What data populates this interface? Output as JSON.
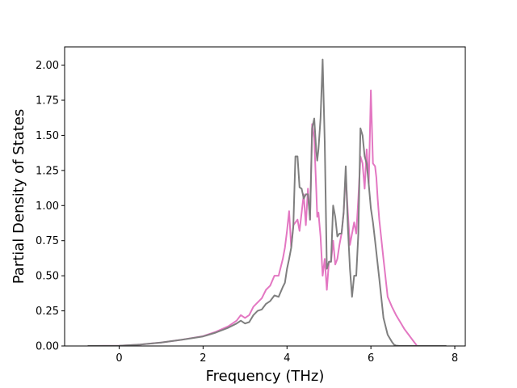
{
  "chart_data": {
    "type": "line",
    "title": "",
    "xlabel": "Frequency (THz)",
    "ylabel": "Partial Density of States",
    "xlim": [
      -1.3,
      8.25
    ],
    "ylim": [
      0.0,
      2.13
    ],
    "xticks": [
      0,
      2,
      4,
      6,
      8
    ],
    "xtick_labels": [
      "0",
      "2",
      "4",
      "6",
      "8"
    ],
    "yticks": [
      0.0,
      0.25,
      0.5,
      0.75,
      1.0,
      1.25,
      1.5,
      1.75,
      2.0
    ],
    "ytick_labels": [
      "0.00",
      "0.25",
      "0.50",
      "0.75",
      "1.00",
      "1.25",
      "1.50",
      "1.75",
      "2.00"
    ],
    "grid": false,
    "legend": "none",
    "series": [
      {
        "color": "#e377c2",
        "x": [
          -0.75,
          0.0,
          0.5,
          1.0,
          1.5,
          2.0,
          2.3,
          2.6,
          2.8,
          2.9,
          3.0,
          3.1,
          3.2,
          3.3,
          3.4,
          3.5,
          3.6,
          3.7,
          3.8,
          3.9,
          3.95,
          4.0,
          4.05,
          4.1,
          4.15,
          4.2,
          4.25,
          4.3,
          4.35,
          4.4,
          4.45,
          4.5,
          4.55,
          4.6,
          4.65,
          4.7,
          4.72,
          4.75,
          4.8,
          4.85,
          4.9,
          4.95,
          5.0,
          5.05,
          5.1,
          5.15,
          5.2,
          5.25,
          5.3,
          5.35,
          5.4,
          5.45,
          5.5,
          5.55,
          5.6,
          5.65,
          5.7,
          5.75,
          5.8,
          5.85,
          5.9,
          5.95,
          6.0,
          6.05,
          6.1,
          6.13,
          6.16,
          6.2,
          6.3,
          6.4,
          6.5,
          6.6,
          6.7,
          6.8,
          6.9,
          7.0,
          7.05,
          7.1
        ],
        "values": [
          0.0,
          0.002,
          0.01,
          0.025,
          0.045,
          0.07,
          0.1,
          0.14,
          0.18,
          0.22,
          0.2,
          0.22,
          0.28,
          0.31,
          0.34,
          0.4,
          0.43,
          0.5,
          0.5,
          0.62,
          0.7,
          0.82,
          0.96,
          0.7,
          0.86,
          0.88,
          0.9,
          0.82,
          0.95,
          1.08,
          0.86,
          1.12,
          0.9,
          1.58,
          1.48,
          1.1,
          0.92,
          0.95,
          0.78,
          0.5,
          0.62,
          0.4,
          0.6,
          0.6,
          0.75,
          0.58,
          0.62,
          0.72,
          0.8,
          0.95,
          1.22,
          0.95,
          0.72,
          0.8,
          0.88,
          0.8,
          1.05,
          1.35,
          1.3,
          1.12,
          1.4,
          1.15,
          1.82,
          1.3,
          1.28,
          1.2,
          1.05,
          0.9,
          0.62,
          0.35,
          0.28,
          0.22,
          0.17,
          0.12,
          0.08,
          0.04,
          0.02,
          0.0
        ]
      },
      {
        "color": "#7f7f7f",
        "x": [
          -0.75,
          0.0,
          0.5,
          1.0,
          1.5,
          2.0,
          2.3,
          2.6,
          2.8,
          2.9,
          3.0,
          3.1,
          3.2,
          3.3,
          3.4,
          3.5,
          3.6,
          3.7,
          3.8,
          3.9,
          3.95,
          4.0,
          4.05,
          4.1,
          4.15,
          4.2,
          4.25,
          4.3,
          4.35,
          4.4,
          4.45,
          4.5,
          4.55,
          4.6,
          4.65,
          4.7,
          4.72,
          4.75,
          4.8,
          4.85,
          4.9,
          4.95,
          5.0,
          5.05,
          5.1,
          5.15,
          5.2,
          5.25,
          5.3,
          5.35,
          5.4,
          5.45,
          5.5,
          5.55,
          5.6,
          5.65,
          5.7,
          5.75,
          5.8,
          5.85,
          5.9,
          5.95,
          6.0,
          6.05,
          6.1,
          6.2,
          6.3,
          6.4,
          6.5,
          6.55,
          6.6,
          6.7,
          6.8,
          7.0,
          7.5,
          7.8
        ],
        "values": [
          0.0,
          0.002,
          0.01,
          0.025,
          0.045,
          0.068,
          0.095,
          0.13,
          0.16,
          0.18,
          0.16,
          0.17,
          0.22,
          0.25,
          0.26,
          0.3,
          0.32,
          0.36,
          0.35,
          0.42,
          0.45,
          0.55,
          0.62,
          0.7,
          0.85,
          1.35,
          1.35,
          1.13,
          1.12,
          1.05,
          1.08,
          1.08,
          0.9,
          1.55,
          1.62,
          1.38,
          1.32,
          1.4,
          1.62,
          2.04,
          1.45,
          0.55,
          0.6,
          0.6,
          1.0,
          0.92,
          0.78,
          0.8,
          0.8,
          0.95,
          1.28,
          0.85,
          0.55,
          0.35,
          0.5,
          0.5,
          0.8,
          1.55,
          1.5,
          1.35,
          1.3,
          1.15,
          0.98,
          0.88,
          0.75,
          0.48,
          0.2,
          0.08,
          0.03,
          0.01,
          0.003,
          0.0,
          0.0,
          0.0,
          0.0,
          0.0
        ]
      }
    ]
  }
}
